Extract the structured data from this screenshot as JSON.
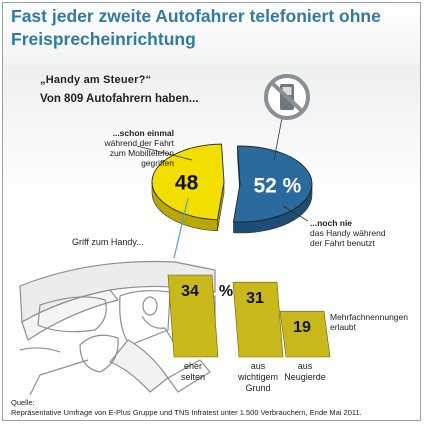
{
  "title": "Fast jeder zweite Autofahrer telefoniert ohne Freisprecheinrichtung",
  "subtitle": "„Handy am Steuer?“",
  "lead": "Von 809 Autofahrern haben...",
  "pie_left_note": [
    "...schon einmal",
    "während der Fahrt",
    "zum Mobiltelefon",
    "gegriffen"
  ],
  "pie_right_note": [
    "...noch nie",
    "das Handy während",
    "der Fahrt benutzt"
  ],
  "bars_intro": "Griff zum Handy...",
  "multiple_answers_note": [
    "Mehrfachnennungen",
    "erlaubt"
  ],
  "source_label": "Quelle:",
  "source_text": "Repräsentative Umfrage von E-Plus Gruppe und TNS Infratest unter 1.500 Verbrauchern, Ende Mai 2011.",
  "colors": {
    "title": "#2f7aa6",
    "yellow": "#f2df00",
    "blue": "#2a6a9c",
    "olive": "#c9b81c"
  },
  "icons": [
    "no-phone-sign-icon",
    "car-driver-illustration"
  ],
  "chart_data": [
    {
      "type": "pie",
      "slices": [
        {
          "label": "48",
          "value": 48,
          "color": "#f2df00"
        },
        {
          "label": "52 %",
          "value": 52,
          "color": "#2a6a9c"
        }
      ]
    },
    {
      "type": "bar",
      "categories": [
        [
          "eher",
          "selten"
        ],
        [
          "aus",
          "wichtigem",
          "Grund"
        ],
        [
          "aus",
          "Neugierde"
        ]
      ],
      "values": [
        34,
        31,
        19
      ],
      "value_labels": [
        "34",
        "31",
        "19"
      ],
      "unit": "%",
      "color": "#c9b81c"
    }
  ]
}
